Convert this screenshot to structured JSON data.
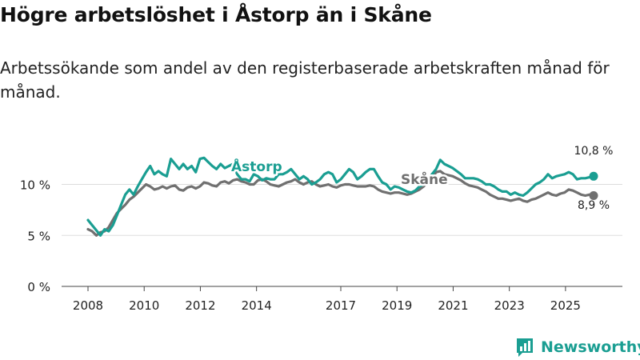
{
  "title": "Högre arbetslöshet i Åstorp än i Skåne",
  "subtitle": "Arbetssökande som andel av den registerbaserade arbetskraften månad för månad.",
  "brand": {
    "name": "Newsworthy",
    "icon": "bar-chart-logo-icon"
  },
  "colors": {
    "astorp": "#1a9e92",
    "skane": "#707070",
    "grid": "#dddddd",
    "text": "#222222"
  },
  "chart_data": {
    "type": "line",
    "title": "Högre arbetslöshet i Åstorp än i Skåne",
    "xlabel": "",
    "ylabel": "",
    "x_start": 2008.0,
    "x_end": 2026.0,
    "ylim": [
      0,
      12
    ],
    "y_ticks": [
      0,
      5,
      10
    ],
    "y_tick_labels": [
      "0 %",
      "5 %",
      "10 %"
    ],
    "x_ticks": [
      2008,
      2010,
      2012,
      2014,
      2017,
      2019,
      2021,
      2023,
      2025
    ],
    "x_tick_labels": [
      "2008",
      "2010",
      "2012",
      "2014",
      "2017",
      "2019",
      "2021",
      "2023",
      "2025"
    ],
    "grid": true,
    "series": [
      {
        "name": "Åstorp",
        "label": "Åstorp",
        "end_label": "10,8 %",
        "last_value": 10.8,
        "values": [
          6.5,
          6.0,
          5.5,
          5.0,
          5.6,
          5.4,
          6.0,
          7.0,
          8.0,
          9.0,
          9.5,
          9.0,
          9.8,
          10.5,
          11.2,
          11.8,
          11.0,
          11.3,
          11.0,
          10.8,
          12.5,
          12.0,
          11.5,
          12.0,
          11.5,
          11.8,
          11.2,
          12.5,
          12.6,
          12.2,
          11.8,
          11.5,
          12.0,
          11.6,
          11.8,
          12.0,
          11.0,
          10.5,
          10.5,
          10.3,
          11.0,
          10.8,
          10.4,
          10.6,
          10.5,
          10.5,
          11.0,
          11.0,
          11.2,
          11.5,
          11.0,
          10.5,
          10.8,
          10.5,
          10.0,
          10.2,
          10.5,
          11.0,
          11.2,
          11.0,
          10.2,
          10.5,
          11.0,
          11.5,
          11.2,
          10.5,
          10.8,
          11.2,
          11.5,
          11.5,
          10.8,
          10.2,
          10.0,
          9.5,
          9.8,
          9.7,
          9.5,
          9.3,
          9.2,
          9.4,
          9.8,
          10.0,
          10.5,
          11.0,
          11.5,
          12.4,
          12.0,
          11.8,
          11.6,
          11.3,
          11.0,
          10.6,
          10.6,
          10.6,
          10.5,
          10.3,
          10.0,
          10.0,
          9.8,
          9.5,
          9.3,
          9.3,
          9.0,
          9.2,
          9.0,
          8.9,
          9.2,
          9.6,
          10.0,
          10.2,
          10.5,
          11.0,
          10.6,
          10.8,
          10.9,
          11.0,
          11.2,
          11.0,
          10.5,
          10.6,
          10.6,
          10.7,
          10.8
        ]
      },
      {
        "name": "Skåne",
        "label": "Skåne",
        "end_label": "8,9 %",
        "last_value": 8.9,
        "values": [
          5.6,
          5.4,
          5.0,
          5.3,
          5.4,
          5.8,
          6.5,
          7.2,
          7.6,
          8.0,
          8.5,
          8.8,
          9.2,
          9.6,
          10.0,
          9.8,
          9.5,
          9.6,
          9.8,
          9.6,
          9.8,
          9.9,
          9.5,
          9.4,
          9.7,
          9.8,
          9.6,
          9.8,
          10.2,
          10.1,
          9.9,
          9.8,
          10.2,
          10.3,
          10.1,
          10.4,
          10.5,
          10.3,
          10.2,
          10.0,
          10.0,
          10.4,
          10.5,
          10.3,
          10.0,
          9.9,
          9.8,
          10.0,
          10.2,
          10.3,
          10.5,
          10.2,
          10.0,
          10.2,
          10.3,
          10.0,
          9.8,
          9.9,
          10.0,
          9.8,
          9.7,
          9.9,
          10.0,
          10.0,
          9.9,
          9.8,
          9.8,
          9.8,
          9.9,
          9.8,
          9.5,
          9.3,
          9.2,
          9.1,
          9.2,
          9.2,
          9.1,
          9.0,
          9.1,
          9.3,
          9.5,
          9.8,
          10.2,
          10.6,
          11.2,
          11.3,
          11.0,
          10.9,
          10.8,
          10.6,
          10.4,
          10.1,
          9.9,
          9.8,
          9.7,
          9.5,
          9.3,
          9.0,
          8.8,
          8.6,
          8.6,
          8.5,
          8.4,
          8.5,
          8.6,
          8.4,
          8.3,
          8.5,
          8.6,
          8.8,
          9.0,
          9.2,
          9.0,
          8.9,
          9.1,
          9.2,
          9.5,
          9.4,
          9.2,
          9.0,
          8.9,
          9.0,
          8.9
        ]
      }
    ]
  }
}
